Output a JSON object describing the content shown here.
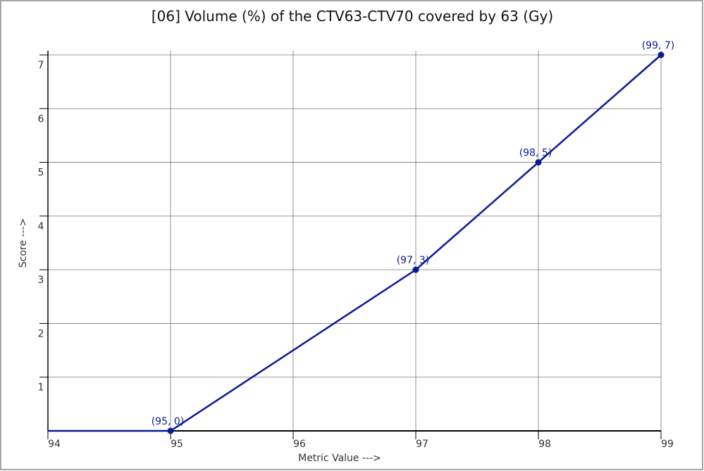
{
  "chart_data": {
    "type": "line",
    "title": "[06]  Volume (%) of the CTV63-CTV70 covered by 63 (Gy)",
    "x_label": "Metric Value --->",
    "y_label": "Score --->",
    "x": [
      94,
      95,
      97,
      98,
      99
    ],
    "series": [
      {
        "name": "Score",
        "color": "#0a1a96",
        "values": [
          0,
          0,
          3,
          5,
          7
        ],
        "value_labels": [
          null,
          "(95, 0)",
          "(97, 3)",
          "(98, 5)",
          "(99, 7)"
        ]
      }
    ],
    "xlim": [
      94,
      99
    ],
    "xticks": [
      94,
      95,
      96,
      97,
      98,
      99
    ],
    "ylim": [
      0,
      7
    ],
    "yticks": [
      1,
      2,
      3,
      4,
      5,
      6,
      7
    ],
    "grid": true
  }
}
